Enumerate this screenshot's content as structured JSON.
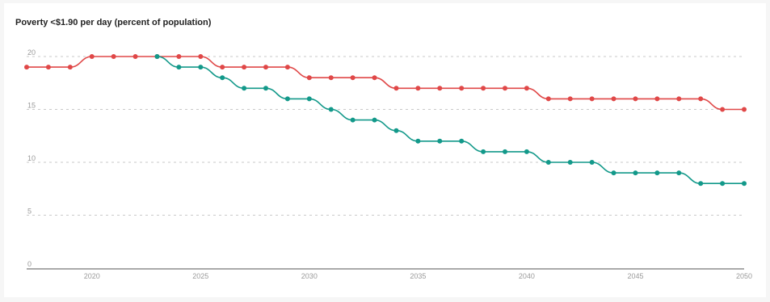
{
  "chart_data": {
    "type": "line",
    "title": "Poverty <$1.90 per day (percent of population)",
    "xlabel": "",
    "ylabel": "",
    "xlim": [
      2017,
      2050
    ],
    "ylim": [
      0,
      20
    ],
    "y_ticks": [
      0,
      5,
      10,
      15,
      20
    ],
    "x_ticks": [
      2020,
      2025,
      2030,
      2035,
      2040,
      2045,
      2050
    ],
    "grid": "horizontal dashed",
    "legend": "none",
    "x": [
      2017,
      2018,
      2019,
      2020,
      2021,
      2022,
      2023,
      2024,
      2025,
      2026,
      2027,
      2028,
      2029,
      2030,
      2031,
      2032,
      2033,
      2034,
      2035,
      2036,
      2037,
      2038,
      2039,
      2040,
      2041,
      2042,
      2043,
      2044,
      2045,
      2046,
      2047,
      2048,
      2049,
      2050
    ],
    "series": [
      {
        "color": "#e04848",
        "values": [
          19,
          19,
          19,
          20,
          20,
          20,
          20,
          20,
          20,
          19,
          19,
          19,
          19,
          18,
          18,
          18,
          18,
          17,
          17,
          17,
          17,
          17,
          17,
          17,
          16,
          16,
          16,
          16,
          16,
          16,
          16,
          16,
          15,
          15
        ]
      },
      {
        "color": "#13998a",
        "values": [
          null,
          null,
          null,
          null,
          null,
          null,
          20,
          19,
          19,
          18,
          17,
          17,
          16,
          16,
          15,
          14,
          14,
          13,
          12,
          12,
          12,
          11,
          11,
          11,
          10,
          10,
          10,
          9,
          9,
          9,
          9,
          8,
          8,
          8
        ]
      }
    ]
  }
}
